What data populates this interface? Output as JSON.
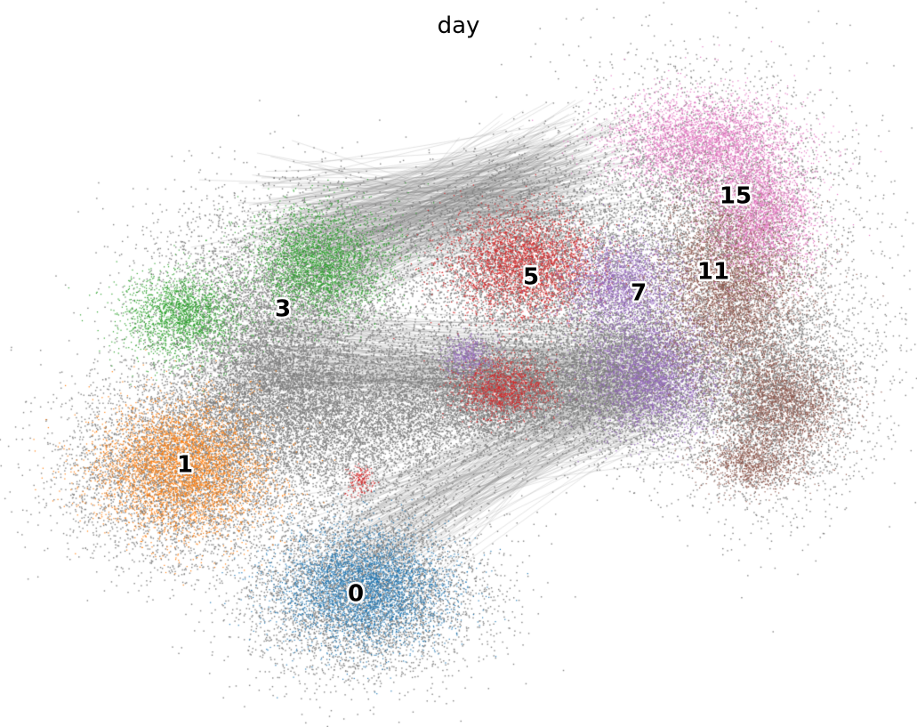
{
  "chart_data": {
    "type": "scatter",
    "title": "day",
    "xlabel": "",
    "ylabel": "",
    "grid": false,
    "axes_visible": false,
    "legend": "on data",
    "edge_color": "#808080",
    "series": [
      {
        "name": "0",
        "color": "#1f77b4"
      },
      {
        "name": "1",
        "color": "#ff7f0e"
      },
      {
        "name": "3",
        "color": "#2ca02c"
      },
      {
        "name": "5",
        "color": "#d62728"
      },
      {
        "name": "7",
        "color": "#9467bd"
      },
      {
        "name": "11",
        "color": "#8c564b"
      },
      {
        "name": "15",
        "color": "#e377c2"
      }
    ]
  }
}
